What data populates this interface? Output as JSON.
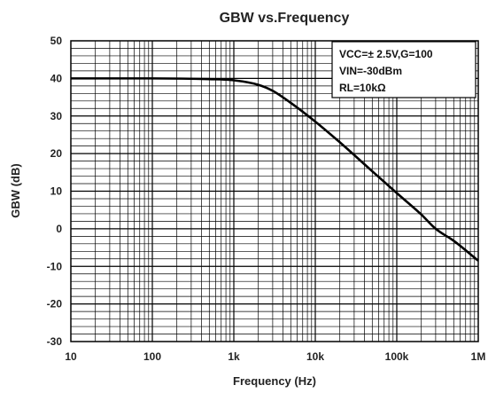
{
  "chart_data": {
    "type": "line",
    "title": "GBW vs.Frequency",
    "xlabel": "Frequency (Hz)",
    "ylabel": "GBW (dB)",
    "x_scale": "log",
    "xlim": [
      10,
      1000000
    ],
    "ylim": [
      -30,
      50
    ],
    "x_ticks": [
      "10",
      "100",
      "1k",
      "10k",
      "100k",
      "1M"
    ],
    "y_ticks": [
      "50",
      "40",
      "30",
      "20",
      "10",
      "0",
      "-10",
      "-20",
      "-30"
    ],
    "grid": true,
    "legend_position": "top-right",
    "annotation_lines": [
      "VCC=± 2.5V,G=100",
      "VIN=-30dBm",
      "RL=10kΩ"
    ],
    "series": [
      {
        "x": [
          10,
          100,
          500,
          1000,
          2000,
          3000,
          5000,
          10000,
          20000,
          50000,
          100000,
          200000,
          300000,
          500000,
          1000000
        ],
        "y": [
          40,
          40,
          39.8,
          39.5,
          38.3,
          36.7,
          33.5,
          28.5,
          23,
          15.3,
          9.5,
          3.8,
          0,
          -3.2,
          -8.5
        ]
      }
    ]
  }
}
